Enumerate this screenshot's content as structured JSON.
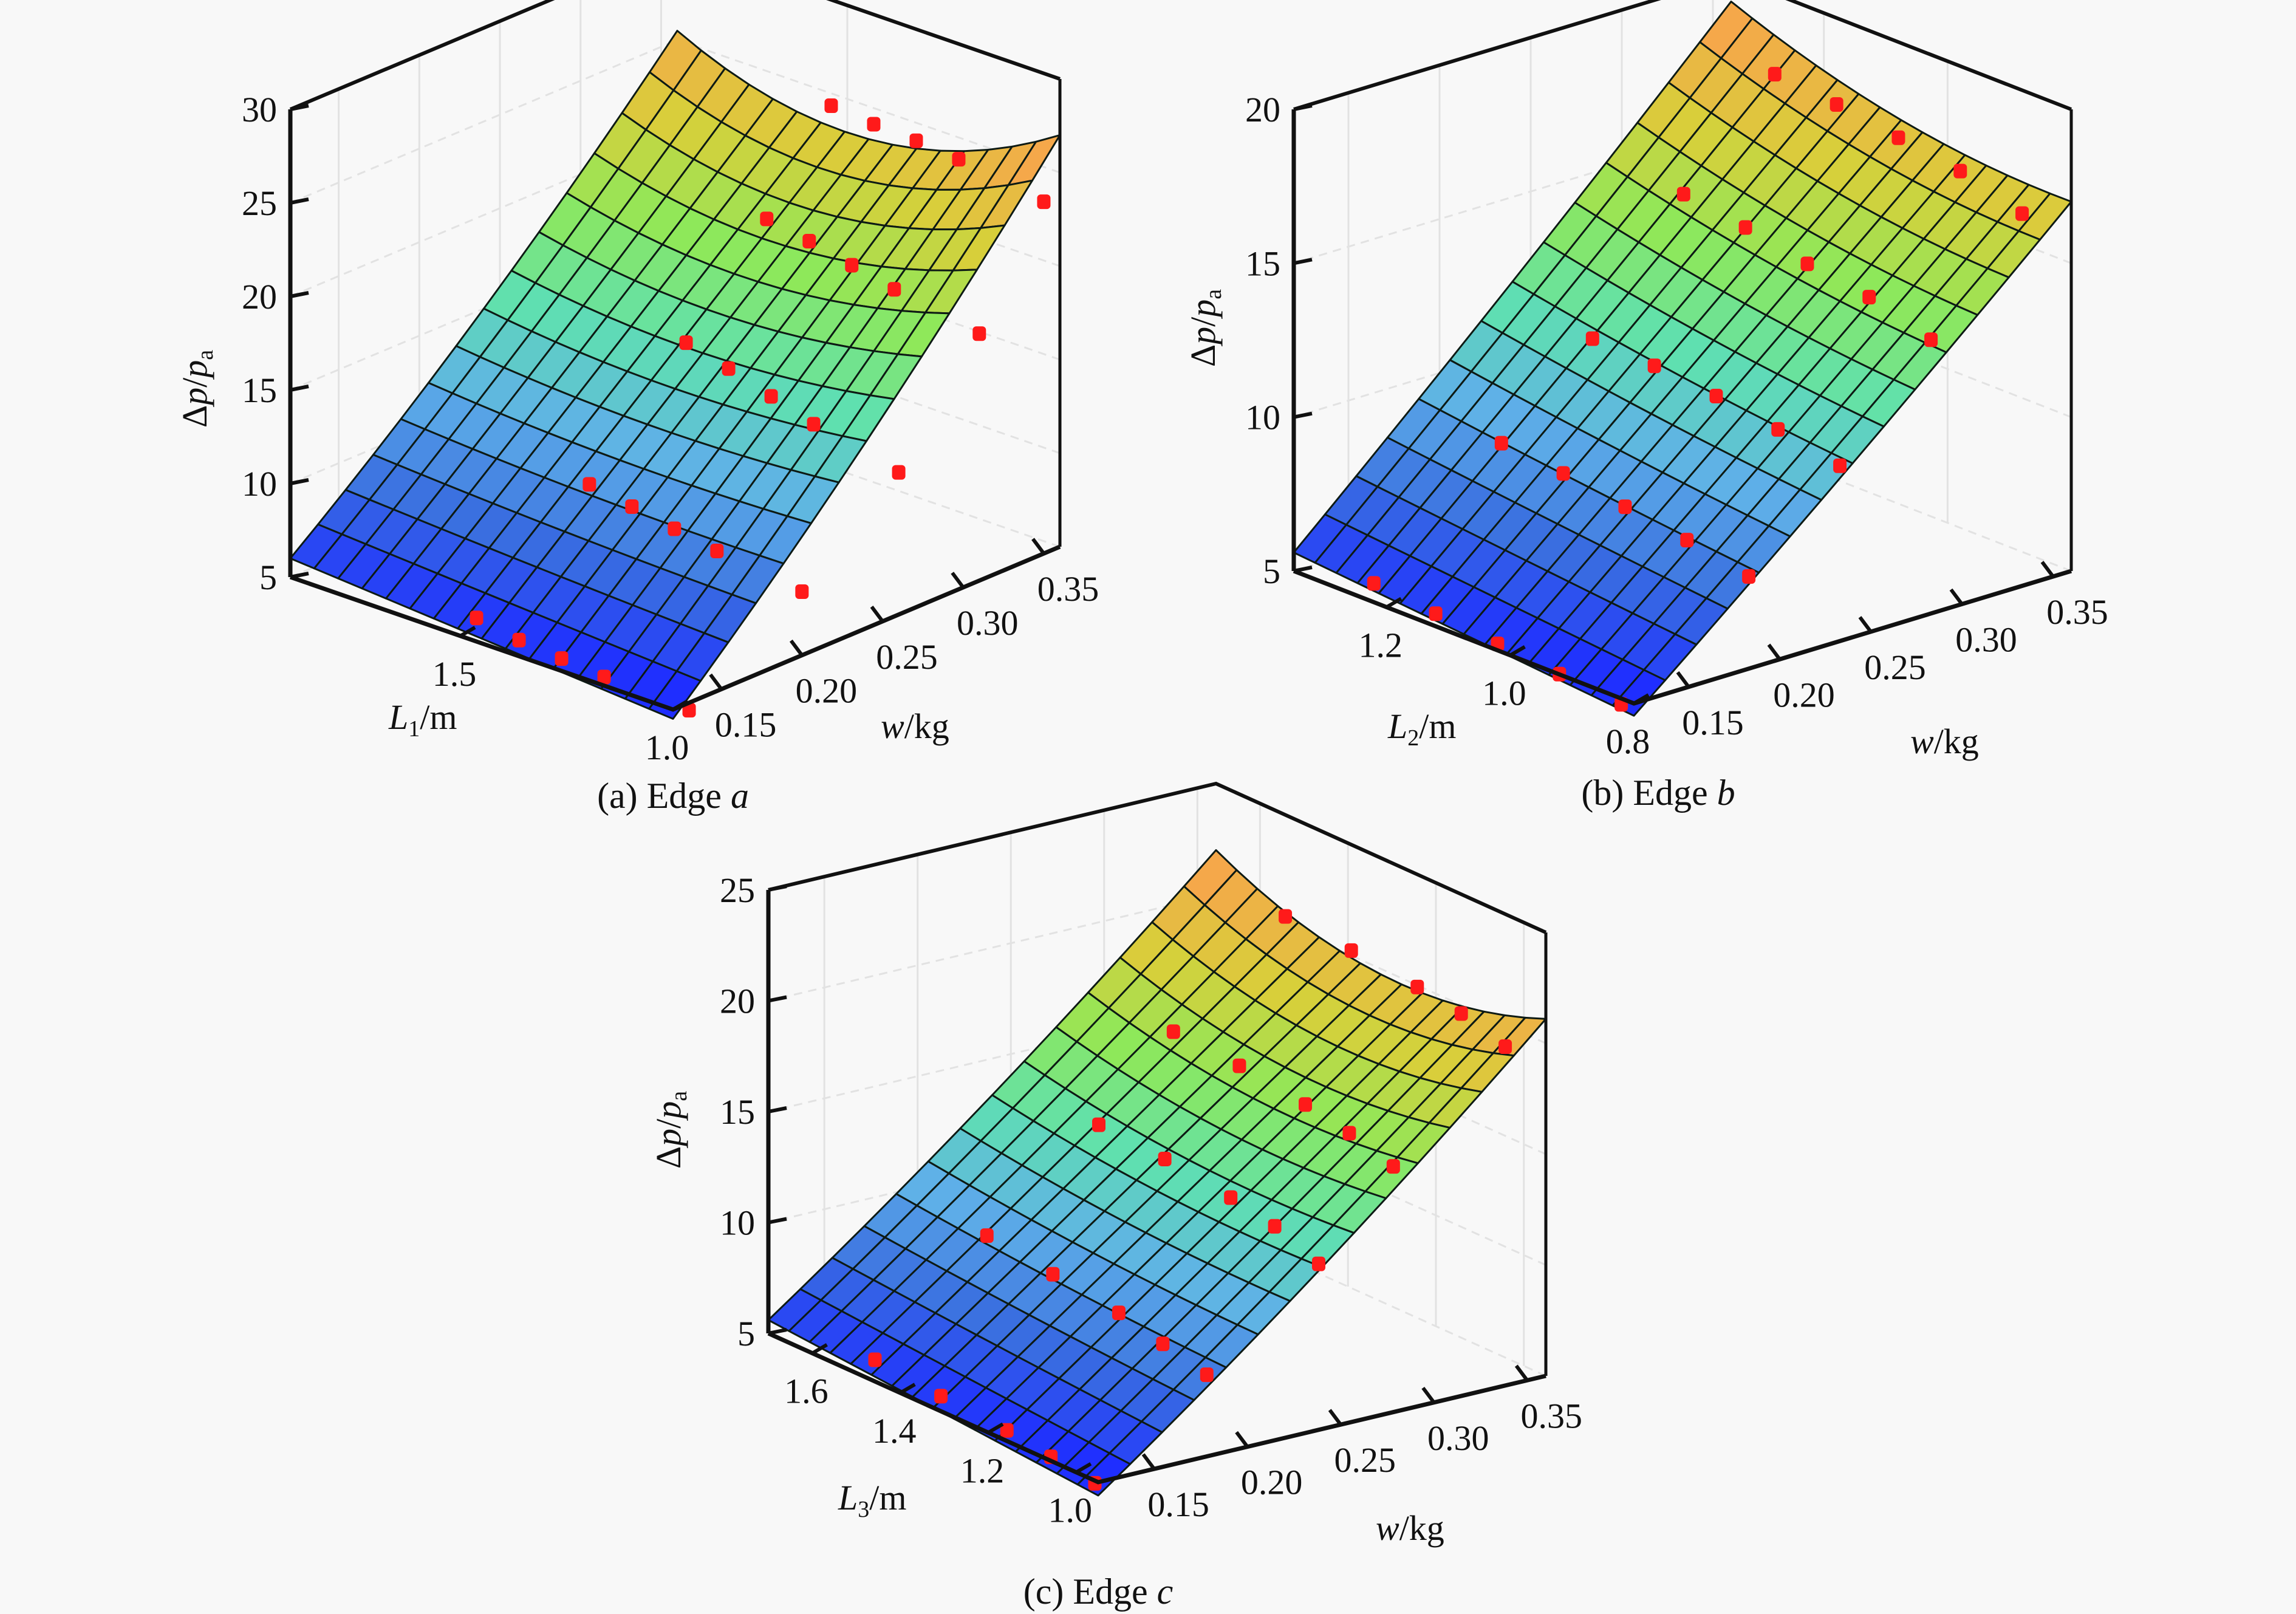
{
  "chart_data": [
    {
      "type": "surface",
      "panel_id": "a",
      "caption": {
        "prefix": "(a) Edge ",
        "edge": "a"
      },
      "zlabel": {
        "delta": "Δ",
        "p": "p",
        "slash": "/",
        "p2": "p",
        "sub": "a"
      },
      "xlabel": {
        "L": "L",
        "sub": "1",
        "unit": "/m"
      },
      "ylabel": {
        "w": "w",
        "unit": "/kg"
      },
      "zlim": [
        5,
        30
      ],
      "z_ticks": [
        "5",
        "10",
        "15",
        "20",
        "25",
        "30"
      ],
      "x_range": [
        1.0,
        1.9
      ],
      "x_ticks": [
        "1.0",
        "1.5"
      ],
      "x_tick_values": [
        1.0,
        1.5
      ],
      "y_range": [
        0.12,
        0.36
      ],
      "y_ticks": [
        "0.15",
        "0.20",
        "0.25",
        "0.30",
        "0.35"
      ],
      "y_tick_values": [
        0.15,
        0.2,
        0.25,
        0.3,
        0.35
      ],
      "surface_corners": {
        "L_max_w_min": 6.0,
        "L_min_w_min": 4.5,
        "L_max_w_max": 22.5,
        "L_min_w_max": 24.0
      },
      "surface_curvature": 3.0,
      "points": [
        {
          "L": 1.5,
          "w": 0.13,
          "z": 5.6
        },
        {
          "L": 1.4,
          "w": 0.13,
          "z": 5.2
        },
        {
          "L": 1.3,
          "w": 0.13,
          "z": 5.0
        },
        {
          "L": 1.2,
          "w": 0.13,
          "z": 4.8
        },
        {
          "L": 1.0,
          "w": 0.13,
          "z": 4.6
        },
        {
          "L": 1.5,
          "w": 0.2,
          "z": 10.2
        },
        {
          "L": 1.4,
          "w": 0.2,
          "z": 9.8
        },
        {
          "L": 1.3,
          "w": 0.2,
          "z": 9.4
        },
        {
          "L": 1.2,
          "w": 0.2,
          "z": 9.0
        },
        {
          "L": 1.0,
          "w": 0.2,
          "z": 8.4
        },
        {
          "L": 1.5,
          "w": 0.26,
          "z": 15.6
        },
        {
          "L": 1.4,
          "w": 0.26,
          "z": 15.0
        },
        {
          "L": 1.3,
          "w": 0.26,
          "z": 14.3
        },
        {
          "L": 1.2,
          "w": 0.26,
          "z": 13.6
        },
        {
          "L": 1.0,
          "w": 0.26,
          "z": 12.6
        },
        {
          "L": 1.5,
          "w": 0.31,
          "z": 20.4
        },
        {
          "L": 1.4,
          "w": 0.31,
          "z": 20.0
        },
        {
          "L": 1.3,
          "w": 0.31,
          "z": 19.5
        },
        {
          "L": 1.2,
          "w": 0.31,
          "z": 19.0
        },
        {
          "L": 1.0,
          "w": 0.31,
          "z": 18.2
        },
        {
          "L": 1.5,
          "w": 0.35,
          "z": 25.0
        },
        {
          "L": 1.4,
          "w": 0.35,
          "z": 24.8
        },
        {
          "L": 1.3,
          "w": 0.35,
          "z": 24.7
        },
        {
          "L": 1.2,
          "w": 0.35,
          "z": 24.5
        },
        {
          "L": 1.0,
          "w": 0.35,
          "z": 23.8
        }
      ]
    },
    {
      "type": "surface",
      "panel_id": "b",
      "caption": {
        "prefix": "(b) Edge ",
        "edge": "b"
      },
      "zlabel": {
        "delta": "Δ",
        "p": "p",
        "slash": "/",
        "p2": "p",
        "sub": "a"
      },
      "xlabel": {
        "L": "L",
        "sub": "2",
        "unit": "/m"
      },
      "ylabel": {
        "w": "w",
        "unit": "/kg"
      },
      "zlim": [
        5,
        20
      ],
      "z_ticks": [
        "5",
        "10",
        "15",
        "20"
      ],
      "x_range": [
        0.8,
        1.35
      ],
      "x_ticks": [
        "0.8",
        "1.0",
        "1.2"
      ],
      "x_tick_values": [
        0.8,
        1.0,
        1.2
      ],
      "y_range": [
        0.12,
        0.36
      ],
      "y_ticks": [
        "0.15",
        "0.20",
        "0.25",
        "0.30",
        "0.35"
      ],
      "y_tick_values": [
        0.15,
        0.2,
        0.25,
        0.3,
        0.35
      ],
      "surface_corners": {
        "L_max_w_min": 5.6,
        "L_min_w_min": 4.6,
        "L_max_w_max": 18.6,
        "L_min_w_max": 16.4
      },
      "surface_curvature": 0.6,
      "points": [
        {
          "L": 1.25,
          "w": 0.13,
          "z": 5.2
        },
        {
          "L": 1.15,
          "w": 0.13,
          "z": 5.0
        },
        {
          "L": 1.05,
          "w": 0.13,
          "z": 4.8
        },
        {
          "L": 0.95,
          "w": 0.13,
          "z": 4.6
        },
        {
          "L": 0.85,
          "w": 0.13,
          "z": 4.4
        },
        {
          "L": 1.25,
          "w": 0.2,
          "z": 8.5
        },
        {
          "L": 1.15,
          "w": 0.2,
          "z": 8.3
        },
        {
          "L": 1.05,
          "w": 0.2,
          "z": 8.0
        },
        {
          "L": 0.95,
          "w": 0.2,
          "z": 7.7
        },
        {
          "L": 0.85,
          "w": 0.2,
          "z": 7.3
        },
        {
          "L": 1.25,
          "w": 0.25,
          "z": 11.0
        },
        {
          "L": 1.15,
          "w": 0.25,
          "z": 10.9
        },
        {
          "L": 1.05,
          "w": 0.25,
          "z": 10.7
        },
        {
          "L": 0.95,
          "w": 0.25,
          "z": 10.4
        },
        {
          "L": 0.85,
          "w": 0.25,
          "z": 10.0
        },
        {
          "L": 1.25,
          "w": 0.3,
          "z": 14.8
        },
        {
          "L": 1.15,
          "w": 0.3,
          "z": 14.5
        },
        {
          "L": 1.05,
          "w": 0.3,
          "z": 14.1
        },
        {
          "L": 0.95,
          "w": 0.3,
          "z": 13.8
        },
        {
          "L": 0.85,
          "w": 0.3,
          "z": 13.2
        },
        {
          "L": 1.25,
          "w": 0.35,
          "z": 17.8
        },
        {
          "L": 1.15,
          "w": 0.35,
          "z": 17.6
        },
        {
          "L": 1.05,
          "w": 0.35,
          "z": 17.3
        },
        {
          "L": 0.95,
          "w": 0.35,
          "z": 17.0
        },
        {
          "L": 0.85,
          "w": 0.35,
          "z": 16.4
        }
      ]
    },
    {
      "type": "surface",
      "panel_id": "c",
      "caption": {
        "prefix": "(c) Edge ",
        "edge": "c"
      },
      "zlabel": {
        "delta": "Δ",
        "p": "p",
        "slash": "/",
        "p2": "p",
        "sub": "a"
      },
      "xlabel": {
        "L": "L",
        "sub": "3",
        "unit": "/m"
      },
      "ylabel": {
        "w": "w",
        "unit": "/kg"
      },
      "zlim": [
        5,
        25
      ],
      "z_ticks": [
        "5",
        "10",
        "15",
        "20",
        "25"
      ],
      "x_range": [
        0.95,
        1.7
      ],
      "x_ticks": [
        "1.0",
        "1.2",
        "1.4",
        "1.6"
      ],
      "x_tick_values": [
        1.0,
        1.2,
        1.4,
        1.6
      ],
      "y_range": [
        0.12,
        0.36
      ],
      "y_ticks": [
        "0.15",
        "0.20",
        "0.25",
        "0.30",
        "0.35"
      ],
      "y_tick_values": [
        0.15,
        0.2,
        0.25,
        0.3,
        0.35
      ],
      "surface_corners": {
        "L_max_w_min": 5.6,
        "L_min_w_min": 4.4,
        "L_max_w_max": 20.2,
        "L_min_w_max": 19.3
      },
      "surface_curvature": 1.8,
      "points": [
        {
          "L": 1.5,
          "w": 0.13,
          "z": 5.4
        },
        {
          "L": 1.35,
          "w": 0.13,
          "z": 5.1
        },
        {
          "L": 1.2,
          "w": 0.13,
          "z": 4.9
        },
        {
          "L": 1.1,
          "w": 0.13,
          "z": 4.6
        },
        {
          "L": 1.0,
          "w": 0.13,
          "z": 4.3
        },
        {
          "L": 1.5,
          "w": 0.19,
          "z": 9.8
        },
        {
          "L": 1.35,
          "w": 0.19,
          "z": 9.4
        },
        {
          "L": 1.2,
          "w": 0.19,
          "z": 9.0
        },
        {
          "L": 1.1,
          "w": 0.19,
          "z": 8.5
        },
        {
          "L": 1.0,
          "w": 0.19,
          "z": 8.0
        },
        {
          "L": 1.5,
          "w": 0.25,
          "z": 13.6
        },
        {
          "L": 1.35,
          "w": 0.25,
          "z": 13.4
        },
        {
          "L": 1.2,
          "w": 0.25,
          "z": 13.0
        },
        {
          "L": 1.1,
          "w": 0.25,
          "z": 12.6
        },
        {
          "L": 1.0,
          "w": 0.25,
          "z": 11.8
        },
        {
          "L": 1.5,
          "w": 0.29,
          "z": 17.0
        },
        {
          "L": 1.35,
          "w": 0.29,
          "z": 16.8
        },
        {
          "L": 1.2,
          "w": 0.29,
          "z": 16.4
        },
        {
          "L": 1.1,
          "w": 0.29,
          "z": 16.0
        },
        {
          "L": 1.0,
          "w": 0.29,
          "z": 15.4
        },
        {
          "L": 1.5,
          "w": 0.35,
          "z": 21.0
        },
        {
          "L": 1.35,
          "w": 0.35,
          "z": 20.8
        },
        {
          "L": 1.2,
          "w": 0.35,
          "z": 20.5
        },
        {
          "L": 1.1,
          "w": 0.35,
          "z": 20.2
        },
        {
          "L": 1.0,
          "w": 0.35,
          "z": 19.6
        }
      ]
    }
  ],
  "colors": {
    "background": "#f8f8f8",
    "axis": "#111111",
    "grid": "#e2e2e2",
    "mesh": "#0d1a14",
    "points": "#ff1a1a",
    "colormap": [
      "#1f2eff",
      "#3a6fe0",
      "#5fb0e8",
      "#5fe0b0",
      "#8ee85a",
      "#d8cf3a",
      "#f5a84a"
    ]
  }
}
